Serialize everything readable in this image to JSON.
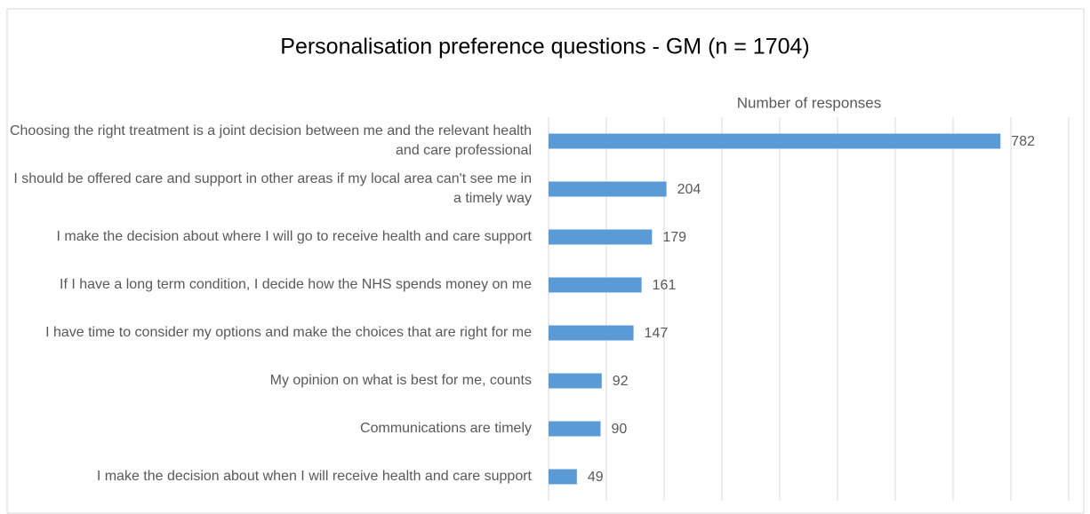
{
  "chart_data": {
    "type": "bar",
    "orientation": "horizontal",
    "title": "Personalisation preference questions - GM (n = 1704)",
    "x_label": "Number of responses",
    "categories": [
      "Choosing the right treatment is a joint decision between me and the relevant health and care professional",
      "I should be offered care and support in other areas if my local area can't see me in a timely way",
      "I make the decision about where I will go to receive health and care support",
      "If I have a long term condition, I decide how the NHS spends money on me",
      "I have time to consider my options and make the choices that are right for me",
      "My opinion on what is best for me, counts",
      "Communications are timely",
      "I make the decision about when I will receive health and care support"
    ],
    "values": [
      782,
      204,
      179,
      161,
      147,
      92,
      90,
      49
    ],
    "color": "#5b9bd5",
    "xlim": [
      0,
      900
    ],
    "xticks": [
      0,
      100,
      200,
      300,
      400,
      500,
      600,
      700,
      800,
      900
    ],
    "grid": true
  }
}
